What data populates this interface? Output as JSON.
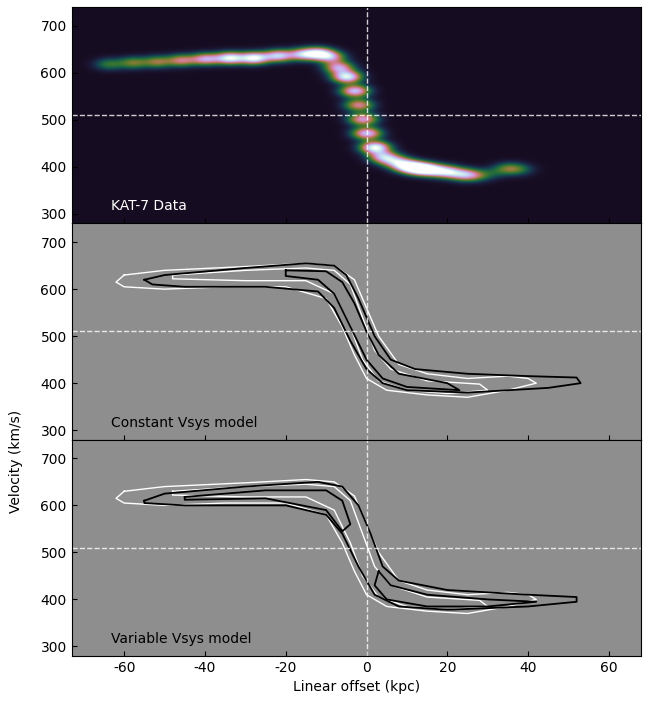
{
  "chart_data": [
    {
      "type": "intensity_map",
      "annotation": "KAT-7 Data",
      "xlim": [
        -73,
        68
      ],
      "ylim": [
        280,
        740
      ],
      "xticks": [
        -60,
        -40,
        -20,
        0,
        20,
        40,
        60
      ],
      "yticks": [
        300,
        400,
        500,
        600,
        700
      ],
      "tick_labels": "y",
      "vline": 0,
      "hline": 510,
      "x": [
        -64,
        -58,
        -52,
        -46,
        -40,
        -34,
        -28,
        -22,
        -16,
        -12,
        -9,
        -7,
        -5,
        -3,
        -2,
        -1,
        0,
        2,
        4,
        7,
        10,
        13,
        16,
        20,
        24,
        27,
        31,
        35,
        38
      ],
      "values": [
        617,
        620,
        622,
        625,
        628,
        630,
        630,
        635,
        638,
        640,
        632,
        610,
        590,
        560,
        530,
        500,
        470,
        440,
        420,
        410,
        400,
        395,
        392,
        388,
        382,
        380,
        385,
        395,
        393
      ],
      "intensity": [
        0.3,
        0.4,
        0.45,
        0.55,
        0.7,
        0.95,
        1.0,
        0.8,
        0.7,
        0.85,
        0.6,
        0.7,
        0.95,
        0.8,
        0.6,
        0.7,
        0.8,
        1.0,
        0.7,
        0.6,
        0.9,
        1.0,
        0.8,
        0.75,
        0.6,
        0.3,
        0.15,
        0.35,
        0.2
      ]
    },
    {
      "type": "contour",
      "annotation": "Constant Vsys model",
      "xlim": [
        -73,
        68
      ],
      "ylim": [
        280,
        740
      ],
      "xticks": [
        -60,
        -40,
        -20,
        0,
        20,
        40,
        60
      ],
      "yticks": [
        300,
        400,
        500,
        600,
        700
      ],
      "tick_labels": "y",
      "vline": 0,
      "hline": 510,
      "series": [
        {
          "color": "white",
          "x": [
            -60,
            -50,
            -30,
            -15,
            -8,
            -3,
            0,
            3,
            8,
            15,
            25,
            35,
            40,
            42,
            35,
            25,
            15,
            5,
            0,
            -3,
            -6,
            -10,
            -20,
            -35,
            -50,
            -60,
            -62,
            -60
          ],
          "values": [
            630,
            640,
            648,
            655,
            650,
            620,
            560,
            500,
            440,
            420,
            410,
            415,
            410,
            400,
            385,
            370,
            375,
            385,
            410,
            460,
            520,
            580,
            605,
            605,
            600,
            605,
            615,
            630
          ]
        },
        {
          "color": "white",
          "x": [
            -48,
            -30,
            -15,
            -8,
            -4,
            -1,
            2,
            6,
            15,
            28,
            30,
            20,
            10,
            3,
            -1,
            -4,
            -8,
            -15,
            -30,
            -48,
            -48
          ],
          "values": [
            630,
            640,
            645,
            640,
            610,
            540,
            470,
            430,
            405,
            398,
            385,
            378,
            385,
            405,
            450,
            520,
            590,
            618,
            618,
            622,
            630
          ]
        },
        {
          "color": "black",
          "x": [
            -55,
            -50,
            -30,
            -15,
            -8,
            -5,
            -2,
            2,
            6,
            12,
            25,
            40,
            52,
            53,
            45,
            25,
            10,
            4,
            0,
            -4,
            -8,
            -12,
            -25,
            -45,
            -53,
            -55
          ],
          "values": [
            620,
            630,
            645,
            655,
            650,
            630,
            580,
            500,
            450,
            430,
            420,
            415,
            412,
            400,
            390,
            380,
            385,
            400,
            430,
            490,
            560,
            595,
            605,
            605,
            610,
            620
          ]
        },
        {
          "color": "black",
          "x": [
            -20,
            -10,
            -6,
            -3,
            0,
            3,
            8,
            20,
            23,
            10,
            4,
            0,
            -4,
            -8,
            -12,
            -20,
            -20
          ],
          "values": [
            640,
            638,
            615,
            570,
            510,
            460,
            420,
            400,
            385,
            392,
            410,
            450,
            520,
            590,
            620,
            628,
            640
          ]
        }
      ]
    },
    {
      "type": "contour",
      "annotation": "Variable Vsys model",
      "xlim": [
        -73,
        68
      ],
      "ylim": [
        280,
        740
      ],
      "xticks": [
        -60,
        -40,
        -20,
        0,
        20,
        40,
        60
      ],
      "yticks": [
        300,
        400,
        500,
        600,
        700
      ],
      "xlabel": "Linear offset (kpc)",
      "ylabel": "Velocity (km/s)",
      "vline": 0,
      "hline": 510,
      "series": [
        {
          "color": "white",
          "x": [
            -60,
            -50,
            -30,
            -15,
            -8,
            -3,
            0,
            3,
            8,
            15,
            25,
            35,
            40,
            42,
            35,
            25,
            15,
            5,
            0,
            -3,
            -6,
            -10,
            -20,
            -35,
            -50,
            -60,
            -62,
            -60
          ],
          "values": [
            630,
            640,
            648,
            655,
            650,
            620,
            560,
            500,
            440,
            420,
            410,
            415,
            410,
            400,
            385,
            370,
            375,
            385,
            410,
            460,
            520,
            580,
            605,
            605,
            600,
            605,
            615,
            630
          ]
        },
        {
          "color": "white",
          "x": [
            -48,
            -30,
            -15,
            -8,
            -4,
            -1,
            2,
            6,
            15,
            28,
            30,
            20,
            10,
            3,
            -1,
            -4,
            -8,
            -15,
            -30,
            -48,
            -48
          ],
          "values": [
            630,
            640,
            645,
            640,
            610,
            540,
            470,
            430,
            405,
            398,
            385,
            378,
            385,
            405,
            450,
            520,
            590,
            618,
            618,
            622,
            630
          ]
        },
        {
          "color": "black",
          "x": [
            -55,
            -50,
            -30,
            -12,
            -6,
            -2,
            1,
            4,
            8,
            20,
            40,
            52,
            52,
            40,
            20,
            8,
            2,
            -2,
            -6,
            -10,
            -20,
            -45,
            -55,
            -55
          ],
          "values": [
            610,
            625,
            640,
            650,
            640,
            600,
            540,
            470,
            440,
            420,
            410,
            405,
            395,
            385,
            378,
            385,
            410,
            470,
            540,
            580,
            600,
            600,
            605,
            610
          ]
        },
        {
          "color": "black",
          "x": [
            -45,
            -25,
            -10,
            -6,
            -4,
            -6,
            -10,
            -25,
            -45,
            -45
          ],
          "values": [
            618,
            632,
            632,
            610,
            560,
            545,
            590,
            615,
            612,
            618
          ]
        },
        {
          "color": "black",
          "x": [
            3,
            6,
            15,
            30,
            42,
            30,
            15,
            5,
            2,
            3
          ],
          "values": [
            460,
            430,
            410,
            400,
            395,
            385,
            385,
            400,
            430,
            460
          ]
        }
      ]
    }
  ]
}
